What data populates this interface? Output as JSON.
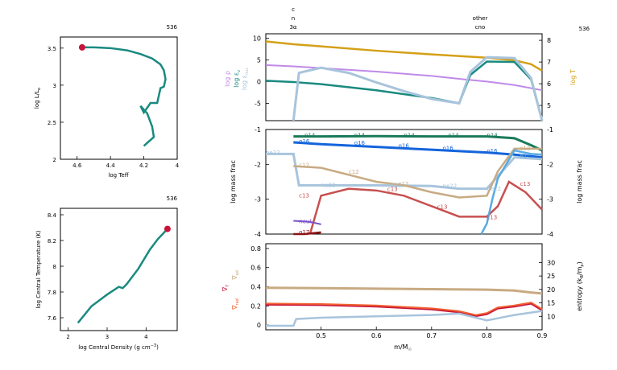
{
  "colors": {
    "teal": "#1a8a80",
    "red": "#c8143c",
    "gold": "#d4a017",
    "lavender": "#c08ae8",
    "ltblue": "#a8c4dc",
    "tan": "#c8aa82",
    "rust": "#c85050",
    "blue": "#1464dc",
    "green": "#1a7a5a",
    "orange": "#f06030",
    "purple": "#7a52c8",
    "maroon": "#8c1414",
    "skyblue": "#5aaae0"
  },
  "hr": {
    "model": "536",
    "xlabel": "log Teff",
    "ylabel": "log L/L",
    "ylabel_sub": "o",
    "x_ticks": [
      "4.6",
      "4.4",
      "4.2",
      "4"
    ],
    "y_ticks": [
      "2",
      "2.5",
      "3",
      "3.5"
    ]
  },
  "tc": {
    "model": "536",
    "xlabel": "log Central Density (g cm",
    "xlabel_sup": "−3",
    "xlabel_end": ")",
    "ylabel": "log Central Temperature (K)",
    "x_ticks": [
      "2",
      "3",
      "4"
    ],
    "y_ticks": [
      "7.6",
      "7.8",
      "8",
      "8.2",
      "8.4"
    ]
  },
  "top": {
    "model": "536",
    "burn_left": [
      "c",
      "n",
      "3α"
    ],
    "burn_right": [
      "other",
      "cno"
    ],
    "y_ticks": [
      "-5",
      "0",
      "5",
      "10"
    ],
    "y2_ticks": [
      "5",
      "6",
      "7",
      "8"
    ],
    "label_rho": "log ρ",
    "label_eps": "log ε",
    "label_eps_sub": "ν",
    "label_epsnuc": "log ε",
    "label_epsnuc_sub": "nuc",
    "label_T": "log T"
  },
  "mid": {
    "ylabel": "log mass frac",
    "y2label": "log mass frac",
    "y_ticks": [
      "-4",
      "-3",
      "-2",
      "-1"
    ],
    "species": [
      "n14",
      "o16",
      "ne22",
      "c12",
      "c13",
      "h1",
      "neut",
      "o17"
    ]
  },
  "bot": {
    "xlabel": "m/M",
    "xlabel_sub": "☉",
    "x_ticks": [
      "0.5",
      "0.6",
      "0.7",
      "0.8",
      "0.9"
    ],
    "y_ticks": [
      "0",
      "0.2",
      "0.4",
      "0.6",
      "0.8"
    ],
    "y2_ticks": [
      "10",
      "15",
      "20",
      "25",
      "30"
    ],
    "label_grad_ad": "∇",
    "label_grad_ad_sub": "ad",
    "label_grad_rad": "∇",
    "label_grad_rad_sub": "rad",
    "label_grad_T": "∇",
    "label_grad_T_sub": "T",
    "y2label": "entropy (k",
    "y2label_sub1": "B",
    "y2label_mid": "/m",
    "y2label_sub2": "p",
    "y2label_end": ")"
  },
  "chart_data": [
    {
      "type": "line",
      "id": "hr",
      "xlabel": "log Teff",
      "ylabel": "log L/Lo",
      "xlim": [
        4.7,
        4.0
      ],
      "ylim": [
        2.0,
        3.65
      ],
      "series": [
        {
          "color": "teal",
          "x": [
            4.57,
            4.5,
            4.4,
            4.3,
            4.22,
            4.15,
            4.1,
            4.08,
            4.07,
            4.08,
            4.1,
            4.12,
            4.16,
            4.2,
            4.22,
            4.18,
            4.15,
            4.14,
            4.2
          ],
          "y": [
            3.51,
            3.51,
            3.5,
            3.47,
            3.42,
            3.36,
            3.28,
            3.2,
            3.08,
            2.98,
            2.96,
            2.76,
            2.76,
            2.63,
            2.72,
            2.62,
            2.44,
            2.3,
            2.18
          ]
        }
      ],
      "marker": {
        "x": 4.57,
        "y": 3.51,
        "color": "red"
      }
    },
    {
      "type": "line",
      "id": "tc",
      "xlabel": "log Central Density",
      "ylabel": "log Central Temperature",
      "xlim": [
        1.8,
        4.8
      ],
      "ylim": [
        7.5,
        8.45
      ],
      "series": [
        {
          "color": "teal",
          "x": [
            2.25,
            2.6,
            3.0,
            3.3,
            3.4,
            3.5,
            3.8,
            4.1,
            4.3,
            4.55
          ],
          "y": [
            7.56,
            7.69,
            7.78,
            7.84,
            7.83,
            7.86,
            7.98,
            8.13,
            8.21,
            8.29
          ]
        }
      ],
      "marker": {
        "x": 4.55,
        "y": 8.29,
        "color": "red"
      }
    },
    {
      "type": "line",
      "id": "structure",
      "xlim": [
        0.4,
        0.9
      ],
      "ylim": [
        -9,
        11
      ],
      "y2lim": [
        4.3,
        8.3
      ],
      "series": [
        {
          "name": "log T",
          "axis": "y2",
          "color": "gold",
          "x": [
            0.4,
            0.45,
            0.5,
            0.6,
            0.7,
            0.8,
            0.85,
            0.88,
            0.9
          ],
          "y": [
            7.95,
            7.82,
            7.72,
            7.52,
            7.35,
            7.2,
            7.08,
            6.9,
            6.6
          ]
        },
        {
          "name": "log ρ",
          "axis": "y",
          "color": "lavender",
          "x": [
            0.4,
            0.45,
            0.5,
            0.6,
            0.7,
            0.76,
            0.8,
            0.85,
            0.9
          ],
          "y": [
            3.8,
            3.5,
            3.1,
            2.3,
            1.3,
            0.5,
            0.0,
            -0.8,
            -2.0
          ]
        },
        {
          "name": "log ε",
          "axis": "y",
          "color": "teal",
          "x": [
            0.4,
            0.45,
            0.5,
            0.6,
            0.7,
            0.75,
            0.77,
            0.8,
            0.85,
            0.88,
            0.9
          ],
          "y": [
            0.2,
            -0.1,
            -0.6,
            -2.0,
            -3.8,
            -5.0,
            1.5,
            4.6,
            4.5,
            0.5,
            -9
          ]
        },
        {
          "name": "log εnuc",
          "axis": "y",
          "color": "ltblue",
          "x": [
            0.45,
            0.46,
            0.5,
            0.55,
            0.6,
            0.65,
            0.7,
            0.75,
            0.77,
            0.8,
            0.85,
            0.88,
            0.9
          ],
          "y": [
            -9,
            2.0,
            3.2,
            2.0,
            -0.2,
            -2.2,
            -4.0,
            -5.0,
            2.2,
            5.6,
            5.4,
            0.8,
            -9
          ]
        }
      ]
    },
    {
      "type": "line",
      "id": "abundances",
      "xlim": [
        0.4,
        0.9
      ],
      "ylim": [
        -4,
        -1
      ],
      "series": [
        {
          "name": "n14",
          "color": "green",
          "x": [
            0.45,
            0.5,
            0.6,
            0.7,
            0.8,
            0.85,
            0.88,
            0.9
          ],
          "y": [
            -1.2,
            -1.2,
            -1.19,
            -1.2,
            -1.2,
            -1.25,
            -1.45,
            -1.6
          ]
        },
        {
          "name": "o16",
          "color": "blue",
          "x": [
            0.45,
            0.5,
            0.6,
            0.7,
            0.8,
            0.85,
            0.9
          ],
          "y": [
            -1.37,
            -1.42,
            -1.5,
            -1.58,
            -1.66,
            -1.72,
            -1.8
          ]
        },
        {
          "name": "ne22",
          "color": "ltblue",
          "x": [
            0.4,
            0.45,
            0.46,
            0.5,
            0.6,
            0.7,
            0.75,
            0.8,
            0.85,
            0.9
          ],
          "y": [
            -1.7,
            -1.7,
            -2.6,
            -2.6,
            -2.6,
            -2.62,
            -2.7,
            -2.7,
            -1.8,
            -1.85
          ]
        },
        {
          "name": "c12",
          "color": "tan",
          "x": [
            0.45,
            0.5,
            0.55,
            0.6,
            0.65,
            0.7,
            0.75,
            0.8,
            0.82,
            0.85,
            0.9
          ],
          "y": [
            -2.05,
            -2.1,
            -2.3,
            -2.5,
            -2.6,
            -2.8,
            -2.95,
            -2.9,
            -2.2,
            -1.55,
            -1.55
          ]
        },
        {
          "name": "c13",
          "color": "rust",
          "x": [
            0.48,
            0.5,
            0.55,
            0.6,
            0.65,
            0.7,
            0.75,
            0.8,
            0.82,
            0.84,
            0.87,
            0.9
          ],
          "y": [
            -4.0,
            -2.9,
            -2.7,
            -2.75,
            -2.9,
            -3.2,
            -3.5,
            -3.5,
            -3.2,
            -2.5,
            -2.8,
            -3.3
          ]
        },
        {
          "name": "h1",
          "color": "skyblue",
          "x": [
            0.79,
            0.8,
            0.81,
            0.82,
            0.85,
            0.88,
            0.9
          ],
          "y": [
            -4.0,
            -3.7,
            -3.0,
            -2.4,
            -1.6,
            -1.7,
            -1.72
          ]
        },
        {
          "name": "neut",
          "color": "purple",
          "x": [
            0.45,
            0.48,
            0.5
          ],
          "y": [
            -3.62,
            -3.65,
            -3.72
          ]
        },
        {
          "name": "o17",
          "color": "maroon",
          "x": [
            0.45,
            0.47,
            0.5
          ],
          "y": [
            -4.0,
            -4.0,
            -3.95
          ]
        }
      ]
    },
    {
      "type": "line",
      "id": "gradients",
      "xlabel": "m/M☉",
      "xlim": [
        0.4,
        0.9
      ],
      "ylim": [
        -0.05,
        0.85
      ],
      "y2lim": [
        5,
        37
      ],
      "series": [
        {
          "name": "∇ad",
          "color": "tan",
          "x": [
            0.4,
            0.5,
            0.6,
            0.7,
            0.8,
            0.85,
            0.88,
            0.9
          ],
          "y": [
            0.39,
            0.385,
            0.38,
            0.375,
            0.37,
            0.36,
            0.34,
            0.33
          ]
        },
        {
          "name": "∇rad",
          "color": "orange",
          "x": [
            0.4,
            0.5,
            0.6,
            0.7,
            0.75,
            0.78,
            0.8,
            0.82,
            0.85,
            0.88,
            0.9
          ],
          "y": [
            0.22,
            0.215,
            0.2,
            0.17,
            0.14,
            0.1,
            0.12,
            0.18,
            0.2,
            0.23,
            0.16
          ]
        },
        {
          "name": "∇T",
          "color": "red",
          "x": [
            0.4,
            0.5,
            0.6,
            0.7,
            0.75,
            0.78,
            0.8,
            0.82,
            0.85,
            0.88,
            0.9
          ],
          "y": [
            0.21,
            0.205,
            0.19,
            0.16,
            0.13,
            0.09,
            0.11,
            0.17,
            0.19,
            0.22,
            0.15
          ]
        },
        {
          "name": "entropy",
          "axis": "y2",
          "color": "ltblue",
          "x": [
            0.4,
            0.45,
            0.455,
            0.5,
            0.6,
            0.7,
            0.75,
            0.8,
            0.85,
            0.9
          ],
          "y": [
            6.5,
            6.5,
            9.0,
            9.5,
            10.0,
            10.5,
            11.0,
            8.5,
            10.5,
            12.0
          ]
        }
      ]
    }
  ]
}
